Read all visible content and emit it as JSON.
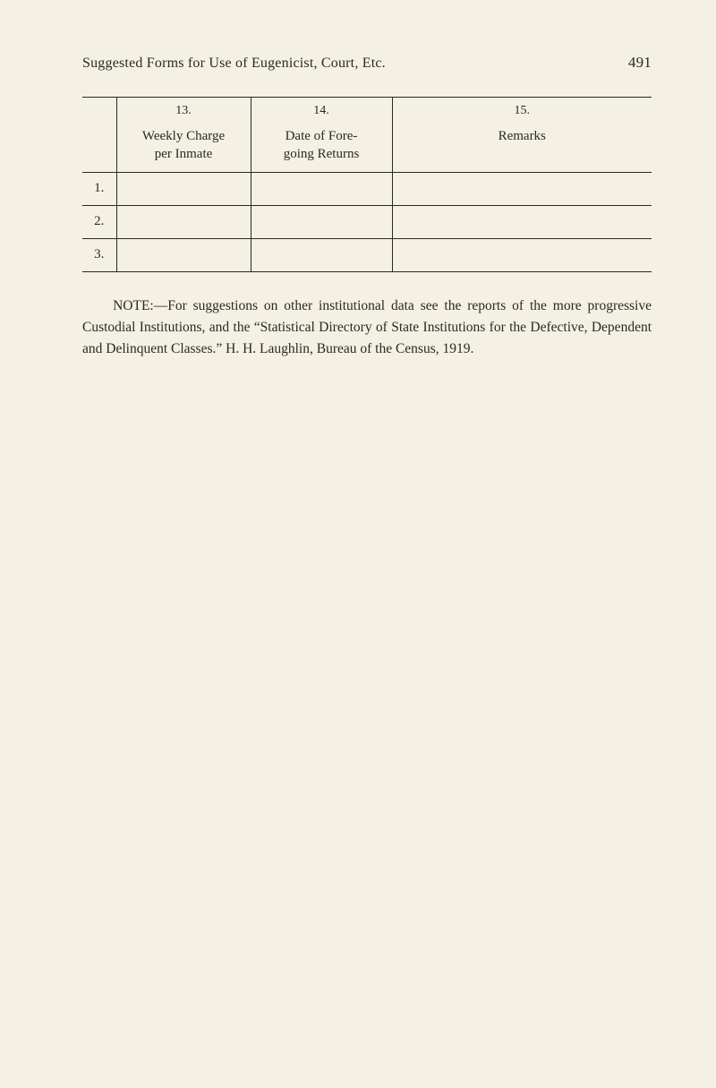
{
  "header": {
    "title_smallcaps": "Suggested Forms for Use of Eugenicist, Court, Etc.",
    "page_number": "491"
  },
  "table": {
    "columns": [
      {
        "num": "13.",
        "label_line1": "Weekly Charge",
        "label_line2": "per Inmate"
      },
      {
        "num": "14.",
        "label_line1": "Date of Fore-",
        "label_line2": "going Returns"
      },
      {
        "num": "15.",
        "label_line1": "Remarks",
        "label_line2": ""
      }
    ],
    "rows": [
      {
        "n": "1.",
        "c13": "",
        "c14": "",
        "c15": ""
      },
      {
        "n": "2.",
        "c13": "",
        "c14": "",
        "c15": ""
      },
      {
        "n": "3.",
        "c13": "",
        "c14": "",
        "c15": ""
      }
    ]
  },
  "note": {
    "text": "NOTE:—For suggestions on other institutional data see the reports of the more progressive Custodial Institutions, and the “Statistical Directory of State Institutions for the Defective, Dependent and Delinquent Classes.”  H. H. Laughlin, Bureau of the Census, 1919."
  }
}
